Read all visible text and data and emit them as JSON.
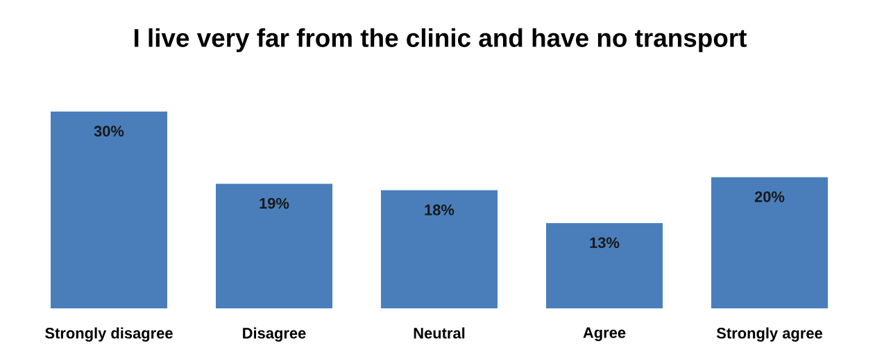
{
  "chart_data": {
    "type": "bar",
    "title": "I live very far from the clinic and have no transport",
    "categories": [
      "Strongly disagree",
      "Disagree",
      "Neutral",
      "Agree",
      "Strongly agree"
    ],
    "values": [
      30,
      19,
      18,
      13,
      20
    ],
    "value_labels": [
      "30%",
      "19%",
      "18%",
      "13%",
      "20%"
    ],
    "color": "#4a7ebb"
  }
}
